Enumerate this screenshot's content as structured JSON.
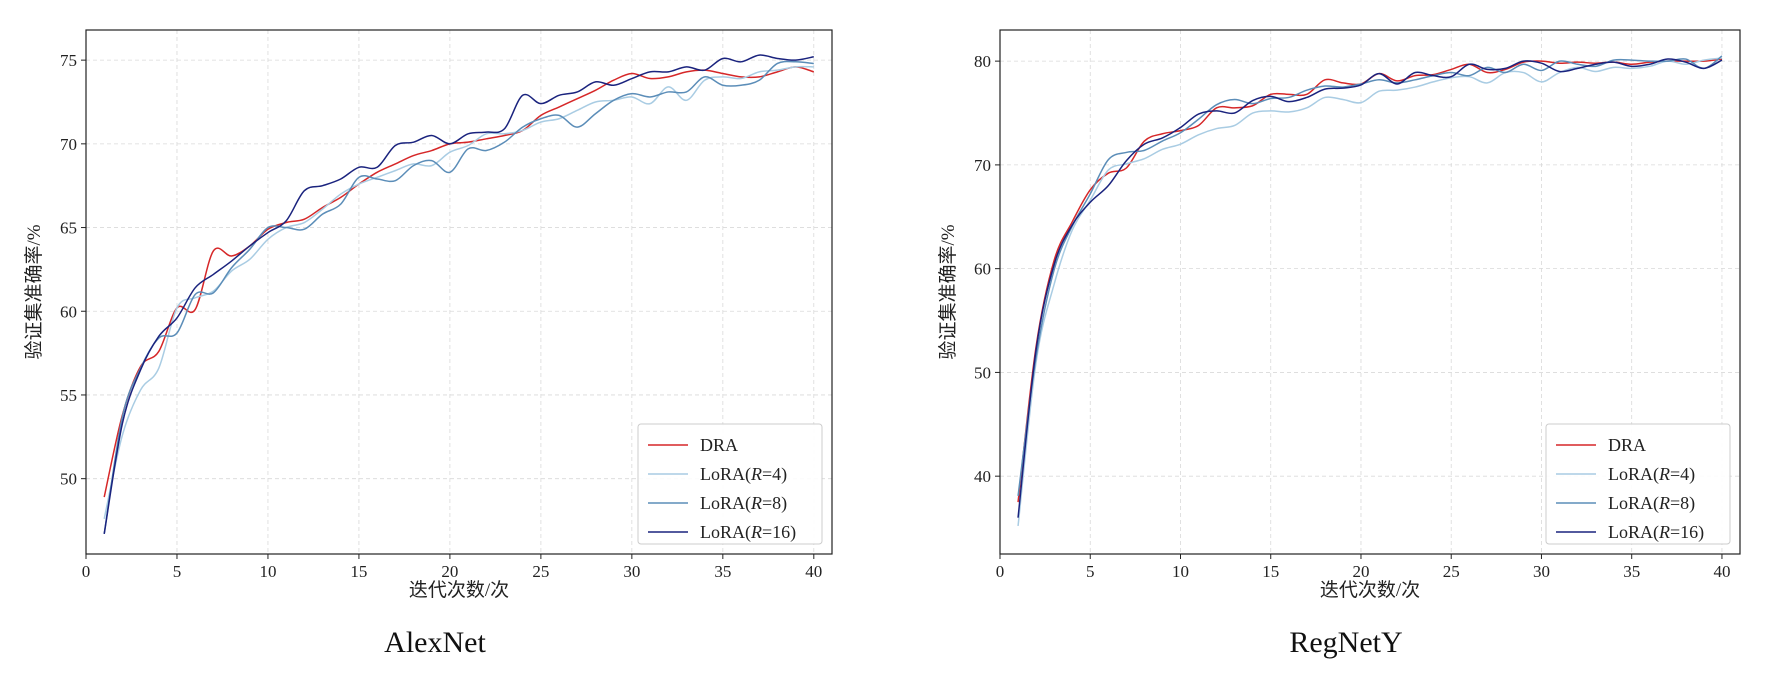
{
  "chart_data": [
    {
      "type": "line",
      "caption": "AlexNet",
      "xlabel": "迭代次数/次",
      "ylabel": "验证集准确率/%",
      "xlim": [
        0,
        41
      ],
      "ylim": [
        45.5,
        76.8
      ],
      "xticks": [
        0,
        5,
        10,
        15,
        20,
        25,
        30,
        35,
        40
      ],
      "yticks": [
        50,
        55,
        60,
        65,
        70,
        75
      ],
      "grid": true,
      "legend_position": "bottom-right",
      "x": [
        1,
        2,
        3,
        4,
        5,
        6,
        7,
        8,
        9,
        10,
        11,
        12,
        13,
        14,
        15,
        16,
        17,
        18,
        19,
        20,
        21,
        22,
        23,
        24,
        25,
        26,
        27,
        28,
        29,
        30,
        31,
        32,
        33,
        34,
        35,
        36,
        37,
        38,
        39,
        40
      ],
      "series": [
        {
          "name": "DRA",
          "color": "#d62728",
          "values": [
            48.9,
            53.8,
            56.7,
            57.6,
            60.2,
            60.1,
            63.6,
            63.3,
            63.9,
            64.9,
            65.3,
            65.5,
            66.2,
            66.8,
            67.6,
            68.3,
            68.8,
            69.3,
            69.6,
            70.0,
            70.1,
            70.3,
            70.5,
            70.8,
            71.7,
            72.2,
            72.7,
            73.2,
            73.8,
            74.2,
            73.9,
            74.0,
            74.3,
            74.4,
            74.2,
            74.0,
            74.0,
            74.3,
            74.6,
            74.3
          ]
        },
        {
          "name": "LoRA(R=4)",
          "color": "#a9cce3",
          "values": [
            47.6,
            52.6,
            55.3,
            56.6,
            60.2,
            60.8,
            61.2,
            62.4,
            63.1,
            64.3,
            65.0,
            65.3,
            66.1,
            67.0,
            67.6,
            68.0,
            68.4,
            68.8,
            68.7,
            69.5,
            69.9,
            70.6,
            70.6,
            70.8,
            71.3,
            71.5,
            72.0,
            72.5,
            72.6,
            72.8,
            72.4,
            73.4,
            72.6,
            73.8,
            74.0,
            73.9,
            74.3,
            74.4,
            74.6,
            74.6
          ]
        },
        {
          "name": "LoRA(R=8)",
          "color": "#5b8db8",
          "values": [
            46.7,
            53.7,
            56.6,
            58.4,
            58.7,
            61.0,
            61.1,
            62.6,
            63.7,
            65.0,
            65.0,
            64.9,
            65.8,
            66.4,
            68.0,
            67.9,
            67.8,
            68.7,
            69.0,
            68.3,
            69.7,
            69.6,
            70.1,
            71.0,
            71.5,
            71.7,
            71.0,
            71.8,
            72.6,
            73.0,
            72.8,
            73.1,
            73.1,
            74.0,
            73.5,
            73.5,
            73.8,
            74.8,
            74.9,
            74.8
          ]
        },
        {
          "name": "LoRA(R=16)",
          "color": "#1a237e",
          "values": [
            46.7,
            53.3,
            56.5,
            58.5,
            59.6,
            61.4,
            62.2,
            63.0,
            63.9,
            64.7,
            65.4,
            67.2,
            67.5,
            67.9,
            68.6,
            68.6,
            69.9,
            70.1,
            70.5,
            70.0,
            70.6,
            70.7,
            70.9,
            72.9,
            72.4,
            72.9,
            73.1,
            73.7,
            73.5,
            73.9,
            74.3,
            74.3,
            74.6,
            74.4,
            75.1,
            74.9,
            75.3,
            75.1,
            75.0,
            75.2
          ]
        }
      ]
    },
    {
      "type": "line",
      "caption": "RegNetY",
      "xlabel": "迭代次数/次",
      "ylabel": "验证集准确率/%",
      "xlim": [
        0,
        41
      ],
      "ylim": [
        32.5,
        83.0
      ],
      "xticks": [
        0,
        5,
        10,
        15,
        20,
        25,
        30,
        35,
        40
      ],
      "yticks": [
        40,
        50,
        60,
        70,
        80
      ],
      "grid": true,
      "legend_position": "bottom-right",
      "x": [
        1,
        2,
        3,
        4,
        5,
        6,
        7,
        8,
        9,
        10,
        11,
        12,
        13,
        14,
        15,
        16,
        17,
        18,
        19,
        20,
        21,
        22,
        23,
        24,
        25,
        26,
        27,
        28,
        29,
        30,
        31,
        32,
        33,
        34,
        35,
        36,
        37,
        38,
        39,
        40
      ],
      "series": [
        {
          "name": "DRA",
          "color": "#d62728",
          "values": [
            37.5,
            52.5,
            60.8,
            64.5,
            67.6,
            69.2,
            69.7,
            72.3,
            73.0,
            73.3,
            73.8,
            75.5,
            75.5,
            75.7,
            76.8,
            76.8,
            76.8,
            78.2,
            77.9,
            77.8,
            78.8,
            78.1,
            78.6,
            78.7,
            79.2,
            79.7,
            78.9,
            79.2,
            79.9,
            80.0,
            79.8,
            79.9,
            79.8,
            79.9,
            79.7,
            79.9,
            80.0,
            80.0,
            80.0,
            80.2
          ]
        },
        {
          "name": "LoRA(R=4)",
          "color": "#a9cce3",
          "values": [
            35.2,
            51.0,
            58.5,
            63.7,
            66.6,
            69.5,
            70.1,
            70.6,
            71.5,
            72.0,
            72.9,
            73.5,
            73.8,
            75.0,
            75.2,
            75.1,
            75.5,
            76.5,
            76.3,
            76.0,
            77.1,
            77.2,
            77.5,
            78.0,
            78.4,
            78.5,
            77.9,
            78.9,
            78.9,
            78.0,
            78.9,
            79.4,
            79.0,
            79.4,
            79.3,
            79.5,
            80.0,
            79.7,
            80.1,
            80.3
          ]
        },
        {
          "name": "LoRA(R=8)",
          "color": "#5b8db8",
          "values": [
            38.1,
            51.5,
            59.9,
            64.1,
            67.2,
            70.5,
            71.2,
            71.4,
            72.3,
            73.1,
            74.4,
            75.8,
            76.3,
            75.9,
            76.4,
            76.5,
            77.2,
            77.6,
            77.5,
            77.8,
            78.2,
            77.9,
            78.2,
            78.6,
            78.9,
            78.6,
            79.4,
            78.9,
            79.7,
            79.1,
            80.0,
            79.7,
            79.5,
            80.1,
            80.1,
            80.0,
            80.0,
            80.2,
            79.3,
            80.5
          ]
        },
        {
          "name": "LoRA(R=16)",
          "color": "#1a237e",
          "values": [
            36.0,
            52.2,
            60.4,
            64.2,
            66.4,
            68.0,
            70.4,
            72.0,
            72.6,
            73.6,
            74.9,
            75.2,
            75.0,
            76.2,
            76.6,
            76.1,
            76.5,
            77.3,
            77.4,
            77.7,
            78.8,
            77.8,
            78.9,
            78.6,
            78.5,
            79.7,
            79.2,
            79.3,
            80.0,
            79.8,
            79.0,
            79.3,
            79.7,
            79.9,
            79.5,
            79.7,
            80.2,
            79.9,
            79.3,
            80.1
          ]
        }
      ]
    }
  ]
}
